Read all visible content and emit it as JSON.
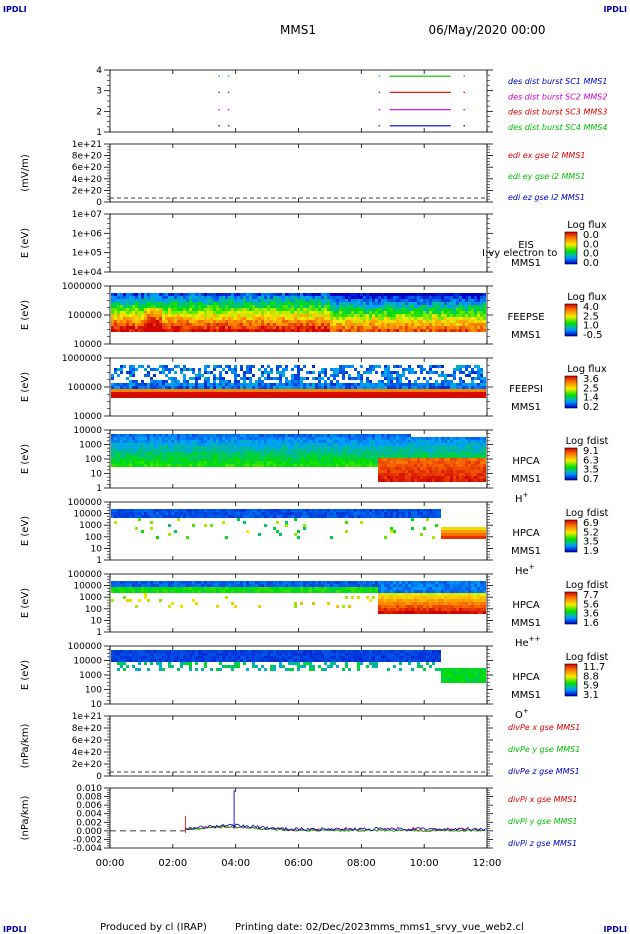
{
  "corner_label": "IPDLI",
  "header": {
    "mission": "MMS1",
    "date": "06/May/2020 00:00"
  },
  "footer": {
    "producer": "Produced by cl (IRAP)",
    "printing": "Printing date: 02/Dec/2023",
    "file": "mms_mms1_srvy_vue_web2.cl"
  },
  "time_axis": [
    "00:00",
    "02:00",
    "04:00",
    "06:00",
    "08:00",
    "10:00",
    "12:00"
  ],
  "colors": {
    "red": "#e00000",
    "green": "#00c000",
    "blue": "#0000cc",
    "magenta": "#d000d0"
  },
  "chart_data": [
    {
      "type": "line",
      "panel": "burst",
      "yticks": [
        "4",
        "3",
        "2",
        "1"
      ],
      "series": [
        {
          "name": "des dist burst SC1 MMS1",
          "color": "#0000cc"
        },
        {
          "name": "des dist burst SC2 MMS2",
          "color": "#d000d0"
        },
        {
          "name": "des dist burst SC3 MMS3",
          "color": "#e00000"
        },
        {
          "name": "des dist burst SC4 MMS4",
          "color": "#00c000"
        }
      ],
      "intervals_hours": [
        [
          3.45,
          3.5
        ],
        [
          3.75,
          3.8
        ],
        [
          8.55,
          8.6
        ],
        [
          8.9,
          10.85
        ],
        [
          11.25,
          11.3
        ]
      ]
    },
    {
      "type": "line",
      "panel": "edi",
      "ylabel": "(mV/m)",
      "yticks": [
        "1e+21",
        "8e+20",
        "6e+20",
        "4e+20",
        "2e+20",
        "0"
      ],
      "series": [
        {
          "name": "edi ex gse l2 MMS1",
          "color": "#e00000"
        },
        {
          "name": "edi ey gse l2 MMS1",
          "color": "#00c000"
        },
        {
          "name": "edi ez gse l2 MMS1",
          "color": "#0000cc"
        }
      ]
    },
    {
      "type": "heatmap",
      "panel": "eis",
      "ylabel": "E (eV)",
      "yticks": [
        "1e+07",
        "1e+06",
        "1e+05",
        "1e+04"
      ],
      "instrument": [
        "EIS",
        "MMS1"
      ],
      "overlay": "I:vy electron to",
      "colorbar": {
        "title": "Log flux",
        "ticks": [
          "0.0",
          "0.0",
          "0.0",
          "0.0"
        ]
      }
    },
    {
      "type": "heatmap",
      "panel": "feepse",
      "ylabel": "E (eV)",
      "yticks": [
        "1000000",
        "100000",
        "10000"
      ],
      "instrument": [
        "FEEPSE",
        "MMS1"
      ],
      "colorbar": {
        "title": "Log flux",
        "ticks": [
          "4.0",
          "2.5",
          "1.0",
          "-0.5"
        ]
      }
    },
    {
      "type": "heatmap",
      "panel": "feepsi",
      "ylabel": "E (eV)",
      "yticks": [
        "1000000",
        "100000",
        "10000"
      ],
      "instrument": [
        "FEEPSI",
        "MMS1"
      ],
      "colorbar": {
        "title": "Log flux",
        "ticks": [
          "3.6",
          "2.5",
          "1.4",
          "0.2"
        ]
      }
    },
    {
      "type": "heatmap",
      "panel": "hpca_h",
      "ylabel": "E (eV)",
      "yticks": [
        "10000",
        "1000",
        "100",
        "10",
        "1"
      ],
      "instrument": [
        "HPCA",
        "MMS1"
      ],
      "species": "H",
      "charge": "+",
      "colorbar": {
        "title": "Log fdist",
        "ticks": [
          "9.1",
          "6.3",
          "3.5",
          "0.7"
        ]
      }
    },
    {
      "type": "heatmap",
      "panel": "hpca_he",
      "ylabel": "E (eV)",
      "yticks": [
        "100000",
        "10000",
        "1000",
        "100",
        "10",
        "1"
      ],
      "instrument": [
        "HPCA",
        "MMS1"
      ],
      "species": "He",
      "charge": "+",
      "colorbar": {
        "title": "Log fdist",
        "ticks": [
          "6.9",
          "5.2",
          "3.5",
          "1.9"
        ]
      }
    },
    {
      "type": "heatmap",
      "panel": "hpca_hepp",
      "ylabel": "E (eV)",
      "yticks": [
        "100000",
        "10000",
        "1000",
        "100",
        "10",
        "1"
      ],
      "instrument": [
        "HPCA",
        "MMS1"
      ],
      "species": "He",
      "charge": "++",
      "colorbar": {
        "title": "Log fdist",
        "ticks": [
          "7.7",
          "5.6",
          "3.6",
          "1.6"
        ]
      }
    },
    {
      "type": "heatmap",
      "panel": "hpca_o",
      "ylabel": "E (eV)",
      "yticks": [
        "100000",
        "10000",
        "1000",
        "100",
        "10"
      ],
      "instrument": [
        "HPCA",
        "MMS1"
      ],
      "species": "O",
      "charge": "+",
      "colorbar": {
        "title": "Log fdist",
        "ticks": [
          "11.7",
          "8.8",
          "5.9",
          "3.1"
        ]
      }
    },
    {
      "type": "line",
      "panel": "divpe",
      "ylabel": "(nPa/km)",
      "yticks": [
        "1e+21",
        "8e+20",
        "6e+20",
        "4e+20",
        "2e+20",
        "0"
      ],
      "series": [
        {
          "name": "divPe x gse MMS1",
          "color": "#e00000"
        },
        {
          "name": "divPe y gse MMS1",
          "color": "#00c000"
        },
        {
          "name": "divPe z gse MMS1",
          "color": "#0000cc"
        }
      ]
    },
    {
      "type": "line",
      "panel": "divpi",
      "ylabel": "(nPa/km)",
      "yticks": [
        "0.010",
        "0.008",
        "0.006",
        "0.004",
        "0.002",
        "0.000",
        "-0.002",
        "-0.004"
      ],
      "ylim": [
        -0.004,
        0.01
      ],
      "series": [
        {
          "name": "divPi x gse MMS1",
          "color": "#e00000"
        },
        {
          "name": "divPi y gse MMS1",
          "color": "#00c000"
        },
        {
          "name": "divPi z gse MMS1",
          "color": "#0000cc"
        }
      ],
      "data_start_hour": 2.4,
      "spike": {
        "hour": 3.95,
        "value": 0.0095
      }
    }
  ]
}
